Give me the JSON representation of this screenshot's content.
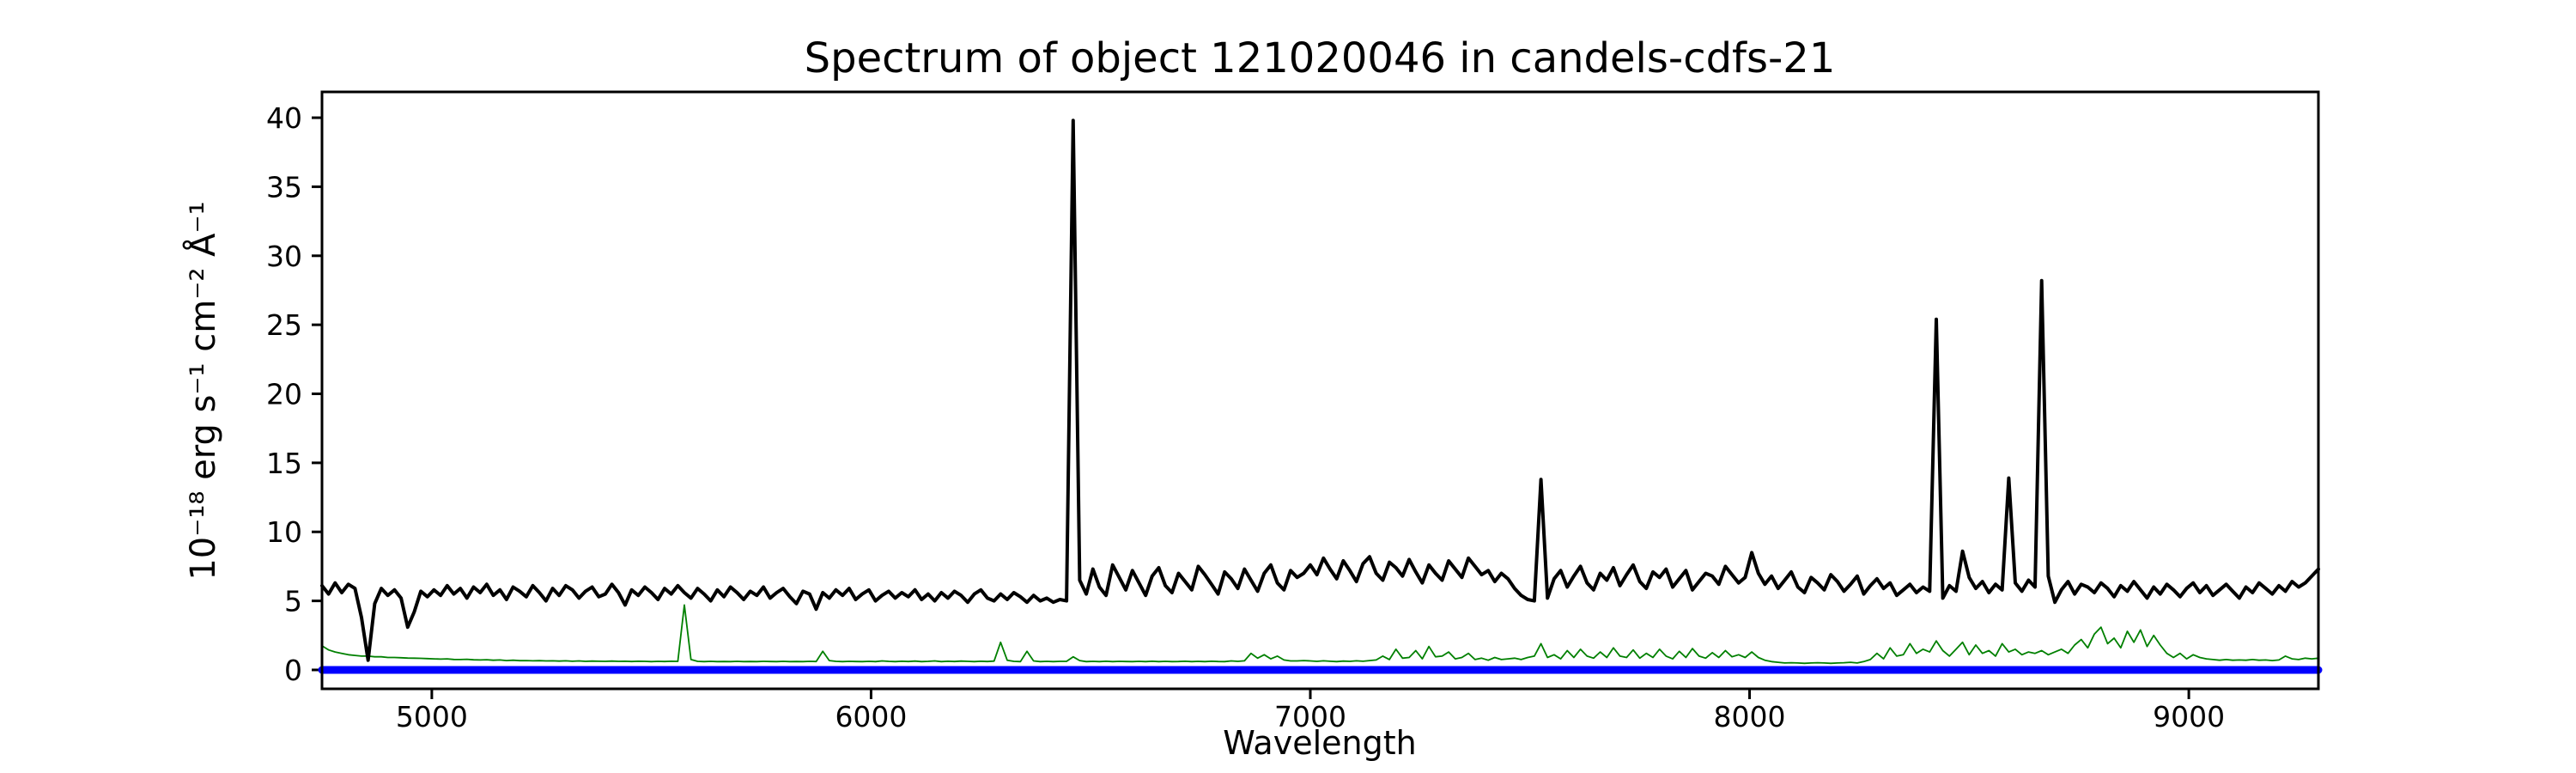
{
  "chart_data": {
    "type": "line",
    "title": "Spectrum of object 121020046 in candels-cdfs-21",
    "xlabel": "Wavelength",
    "ylabel": "10⁻¹⁸ erg s⁻¹ cm⁻² Å⁻¹",
    "xlim": [
      4750,
      9295
    ],
    "ylim": [
      -1.37,
      41.87
    ],
    "xticks": [
      5000,
      6000,
      7000,
      8000,
      9000
    ],
    "yticks": [
      0,
      5,
      10,
      15,
      20,
      25,
      30,
      35,
      40
    ],
    "grid": false,
    "legend": null,
    "colors": {
      "flux": "#000000",
      "error": "#008000",
      "zero": "#0000ff"
    },
    "series": [
      {
        "name": "error-spectrum",
        "color": "#008000",
        "width": 1.8,
        "x0": 4750,
        "dx": 15,
        "y": [
          1.75,
          1.45,
          1.3,
          1.2,
          1.1,
          1.05,
          1.0,
          1.0,
          0.95,
          0.95,
          0.9,
          0.9,
          0.88,
          0.86,
          0.85,
          0.84,
          0.82,
          0.8,
          0.78,
          0.8,
          0.76,
          0.75,
          0.77,
          0.73,
          0.72,
          0.74,
          0.7,
          0.72,
          0.68,
          0.7,
          0.67,
          0.68,
          0.66,
          0.67,
          0.65,
          0.66,
          0.64,
          0.66,
          0.63,
          0.65,
          0.62,
          0.64,
          0.63,
          0.62,
          0.64,
          0.62,
          0.63,
          0.61,
          0.63,
          0.62,
          0.6,
          0.62,
          0.61,
          0.63,
          0.62,
          4.7,
          0.75,
          0.62,
          0.6,
          0.62,
          0.6,
          0.61,
          0.6,
          0.62,
          0.6,
          0.61,
          0.6,
          0.62,
          0.61,
          0.6,
          0.62,
          0.6,
          0.61,
          0.6,
          0.62,
          0.61,
          1.35,
          0.68,
          0.62,
          0.6,
          0.62,
          0.61,
          0.6,
          0.62,
          0.6,
          0.65,
          0.62,
          0.6,
          0.63,
          0.61,
          0.64,
          0.6,
          0.62,
          0.65,
          0.6,
          0.63,
          0.61,
          0.64,
          0.62,
          0.6,
          0.63,
          0.61,
          0.64,
          2.0,
          0.7,
          0.62,
          0.6,
          1.35,
          0.65,
          0.6,
          0.62,
          0.6,
          0.62,
          0.62,
          0.95,
          0.68,
          0.6,
          0.62,
          0.6,
          0.63,
          0.6,
          0.62,
          0.61,
          0.6,
          0.62,
          0.6,
          0.63,
          0.6,
          0.62,
          0.6,
          0.61,
          0.63,
          0.6,
          0.62,
          0.6,
          0.63,
          0.61,
          0.6,
          0.65,
          0.62,
          0.66,
          1.2,
          0.85,
          1.1,
          0.8,
          1.0,
          0.72,
          0.65,
          0.65,
          0.68,
          0.65,
          0.62,
          0.66,
          0.63,
          0.6,
          0.64,
          0.62,
          0.66,
          0.63,
          0.68,
          0.72,
          1.0,
          0.75,
          1.5,
          0.85,
          0.9,
          1.4,
          0.8,
          1.7,
          0.95,
          1.0,
          1.3,
          0.8,
          0.9,
          1.2,
          0.75,
          0.85,
          0.7,
          0.9,
          0.75,
          0.8,
          0.85,
          0.75,
          0.9,
          1.0,
          1.9,
          0.9,
          1.1,
          0.8,
          1.4,
          0.9,
          1.5,
          1.0,
          0.85,
          1.3,
          0.9,
          1.6,
          1.0,
          0.9,
          1.45,
          0.85,
          1.2,
          0.9,
          1.5,
          1.0,
          0.8,
          1.35,
          0.9,
          1.55,
          1.0,
          0.85,
          1.25,
          0.9,
          1.4,
          0.95,
          1.1,
          0.9,
          1.3,
          0.9,
          0.7,
          0.6,
          0.55,
          0.5,
          0.52,
          0.5,
          0.48,
          0.5,
          0.52,
          0.5,
          0.48,
          0.5,
          0.52,
          0.55,
          0.5,
          0.6,
          0.75,
          1.2,
          0.8,
          1.6,
          1.0,
          1.1,
          1.9,
          1.2,
          1.5,
          1.3,
          2.1,
          1.4,
          1.0,
          1.5,
          2.0,
          1.1,
          1.8,
          1.2,
          1.4,
          1.0,
          1.9,
          1.3,
          1.5,
          1.1,
          1.3,
          1.2,
          1.4,
          1.1,
          1.3,
          1.5,
          1.2,
          1.8,
          2.2,
          1.6,
          2.6,
          3.1,
          1.9,
          2.3,
          1.6,
          2.8,
          2.0,
          2.9,
          1.7,
          2.5,
          1.8,
          1.2,
          0.9,
          1.2,
          0.8,
          1.1,
          0.9,
          0.8,
          0.75,
          0.7,
          0.75,
          0.7,
          0.72,
          0.7,
          0.75,
          0.7,
          0.72,
          0.68,
          0.72,
          1.0,
          0.8,
          0.75,
          0.85,
          0.8,
          0.85
        ]
      },
      {
        "name": "zero-line",
        "color": "#0000ff",
        "width": 9,
        "y_const": 0,
        "x_range": [
          4750,
          9295
        ]
      },
      {
        "name": "flux-spectrum",
        "color": "#000000",
        "width": 4,
        "x0": 4750,
        "dx": 15,
        "y": [
          6.1,
          5.5,
          6.3,
          5.6,
          6.2,
          5.9,
          3.8,
          0.7,
          4.8,
          5.9,
          5.4,
          5.8,
          5.2,
          3.1,
          4.2,
          5.7,
          5.3,
          5.8,
          5.4,
          6.1,
          5.5,
          5.9,
          5.2,
          6.0,
          5.6,
          6.2,
          5.4,
          5.8,
          5.1,
          6.0,
          5.7,
          5.3,
          6.1,
          5.6,
          5.0,
          5.9,
          5.4,
          6.1,
          5.8,
          5.2,
          5.7,
          6.0,
          5.3,
          5.5,
          6.2,
          5.6,
          4.7,
          5.8,
          5.4,
          6.0,
          5.6,
          5.1,
          5.9,
          5.5,
          6.1,
          5.6,
          5.2,
          5.9,
          5.5,
          5.0,
          5.8,
          5.3,
          6.0,
          5.6,
          5.1,
          5.7,
          5.4,
          6.0,
          5.2,
          5.6,
          5.9,
          5.3,
          4.8,
          5.7,
          5.5,
          4.4,
          5.6,
          5.2,
          5.8,
          5.4,
          5.9,
          5.1,
          5.5,
          5.8,
          5.0,
          5.4,
          5.7,
          5.2,
          5.6,
          5.3,
          5.8,
          5.1,
          5.5,
          5.0,
          5.6,
          5.2,
          5.7,
          5.4,
          4.9,
          5.5,
          5.8,
          5.2,
          5.0,
          5.5,
          5.1,
          5.6,
          5.3,
          4.9,
          5.4,
          5.0,
          5.2,
          4.9,
          5.1,
          5.0,
          39.8,
          6.5,
          5.5,
          7.3,
          6.0,
          5.4,
          7.6,
          6.7,
          5.8,
          7.2,
          6.3,
          5.4,
          6.8,
          7.4,
          6.1,
          5.6,
          7.0,
          6.4,
          5.8,
          7.5,
          6.9,
          6.2,
          5.5,
          7.1,
          6.6,
          5.9,
          7.3,
          6.5,
          5.7,
          7.0,
          7.6,
          6.3,
          5.8,
          7.2,
          6.7,
          7.0,
          7.6,
          6.9,
          8.1,
          7.3,
          6.6,
          7.9,
          7.2,
          6.4,
          7.7,
          8.2,
          7.0,
          6.5,
          7.8,
          7.4,
          6.8,
          8.0,
          7.1,
          6.3,
          7.6,
          7.0,
          6.5,
          7.9,
          7.3,
          6.7,
          8.1,
          7.5,
          6.9,
          7.2,
          6.4,
          7.0,
          6.6,
          5.9,
          5.4,
          5.1,
          5.0,
          13.8,
          5.2,
          6.6,
          7.2,
          6.0,
          6.8,
          7.5,
          6.3,
          5.8,
          7.0,
          6.5,
          7.4,
          6.1,
          6.9,
          7.6,
          6.4,
          5.9,
          7.1,
          6.7,
          7.3,
          6.0,
          6.6,
          7.2,
          5.8,
          6.4,
          7.0,
          6.8,
          6.2,
          7.5,
          6.9,
          6.3,
          6.7,
          8.5,
          7.0,
          6.2,
          6.8,
          5.9,
          6.5,
          7.1,
          6.0,
          5.6,
          6.7,
          6.3,
          5.8,
          6.9,
          6.4,
          5.7,
          6.2,
          6.8,
          5.5,
          6.1,
          6.6,
          5.9,
          6.3,
          5.4,
          5.8,
          6.2,
          5.6,
          6.0,
          5.7,
          25.4,
          5.2,
          6.1,
          5.7,
          8.6,
          6.7,
          5.9,
          6.4,
          5.6,
          6.2,
          5.8,
          13.9,
          6.3,
          5.7,
          6.5,
          6.0,
          28.2,
          6.8,
          4.9,
          5.8,
          6.4,
          5.5,
          6.2,
          6.0,
          5.6,
          6.3,
          5.9,
          5.3,
          6.1,
          5.7,
          6.4,
          5.8,
          5.2,
          6.0,
          5.5,
          6.2,
          5.8,
          5.3,
          5.9,
          6.3,
          5.6,
          6.1,
          5.4,
          5.8,
          6.2,
          5.7,
          5.2,
          6.0,
          5.6,
          6.3,
          5.9,
          5.5,
          6.1,
          5.7,
          6.4,
          6.0,
          6.3,
          6.8,
          7.3
        ]
      }
    ]
  }
}
